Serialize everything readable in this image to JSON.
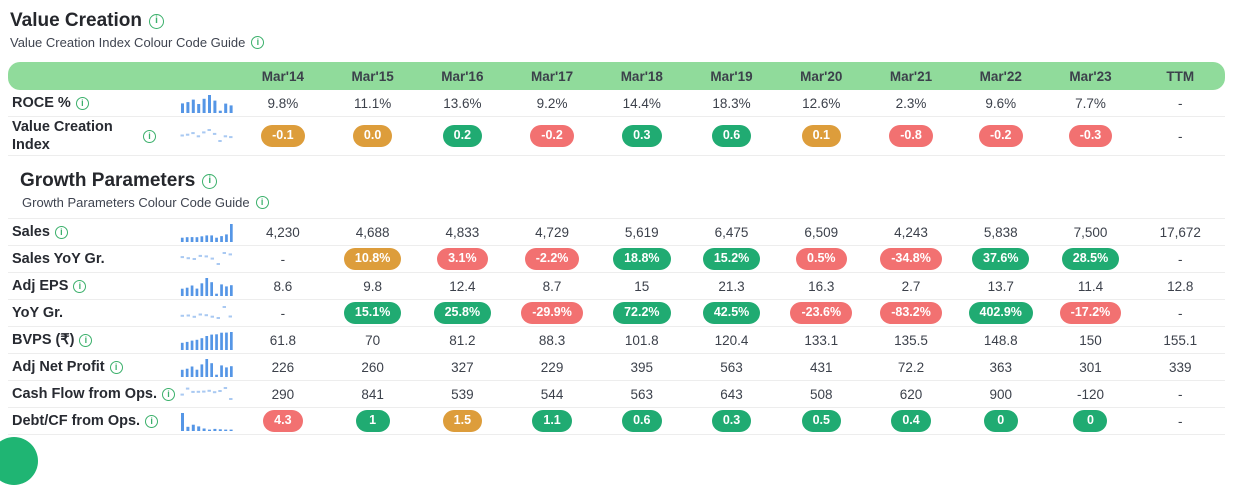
{
  "colors": {
    "g": "#20ab72",
    "r": "#f27171",
    "o": "#dd9d3b",
    "band": "#90db9b",
    "info": "#3bb06b",
    "spark": "#5596e6",
    "spark_light": "#a9c9f2",
    "fab": "#1fb573"
  },
  "columns": [
    "Mar'14",
    "Mar'15",
    "Mar'16",
    "Mar'17",
    "Mar'18",
    "Mar'19",
    "Mar'20",
    "Mar'21",
    "Mar'22",
    "Mar'23",
    "TTM"
  ],
  "value_creation": {
    "title": "Value Creation",
    "guide": "Value Creation Index Colour Code Guide",
    "rows": [
      {
        "label": "ROCE %",
        "info": true,
        "spark": "bars",
        "spark_values": [
          9.8,
          11.1,
          13.6,
          9.2,
          14.4,
          18.3,
          12.6,
          2.3,
          9.6,
          7.7
        ],
        "values": [
          "9.8%",
          "11.1%",
          "13.6%",
          "9.2%",
          "14.4%",
          "18.3%",
          "12.6%",
          "2.3%",
          "9.6%",
          "7.7%",
          "-"
        ]
      },
      {
        "label": "Value Creation Index",
        "info": true,
        "spark": "dots",
        "spark_values": [
          -0.1,
          0,
          0.2,
          -0.2,
          0.3,
          0.6,
          0.1,
          -0.8,
          -0.2,
          -0.3
        ],
        "values": [
          "-0.1",
          "0.0",
          "0.2",
          "-0.2",
          "0.3",
          "0.6",
          "0.1",
          "-0.8",
          "-0.2",
          "-0.3",
          "-"
        ],
        "pills": [
          "o",
          "o",
          "g",
          "r",
          "g",
          "g",
          "o",
          "r",
          "r",
          "r",
          null
        ]
      }
    ]
  },
  "growth": {
    "title": "Growth Parameters",
    "guide": "Growth Parameters Colour Code Guide",
    "rows": [
      {
        "label": "Sales",
        "info": true,
        "spark": "bars",
        "spark_values": [
          4230,
          4688,
          4833,
          4729,
          5619,
          6475,
          6509,
          4243,
          5838,
          7500,
          17672
        ],
        "values": [
          "4,230",
          "4,688",
          "4,833",
          "4,729",
          "5,619",
          "6,475",
          "6,509",
          "4,243",
          "5,838",
          "7,500",
          "17,672"
        ]
      },
      {
        "label": "Sales YoY Gr.",
        "info": false,
        "spark": "dots",
        "spark_values": [
          10.8,
          3.1,
          -2.2,
          18.8,
          15.2,
          0.5,
          -34.8,
          37.6,
          28.5
        ],
        "values": [
          "-",
          "10.8%",
          "3.1%",
          "-2.2%",
          "18.8%",
          "15.2%",
          "0.5%",
          "-34.8%",
          "37.6%",
          "28.5%",
          "-"
        ],
        "pills": [
          null,
          "o",
          "r",
          "r",
          "g",
          "g",
          "r",
          "r",
          "g",
          "g",
          null
        ]
      },
      {
        "label": "Adj EPS",
        "info": true,
        "spark": "bars",
        "spark_values": [
          8.6,
          9.8,
          12.4,
          8.7,
          15,
          21.3,
          16.3,
          2.7,
          13.7,
          11.4,
          12.8
        ],
        "values": [
          "8.6",
          "9.8",
          "12.4",
          "8.7",
          "15",
          "21.3",
          "16.3",
          "2.7",
          "13.7",
          "11.4",
          "12.8"
        ]
      },
      {
        "label": "YoY Gr.",
        "info": false,
        "spark": "dots",
        "spark_values": [
          15.1,
          25.8,
          -29.9,
          72.2,
          42.5,
          -23.6,
          -83.2,
          402.9,
          -17.2
        ],
        "values": [
          "-",
          "15.1%",
          "25.8%",
          "-29.9%",
          "72.2%",
          "42.5%",
          "-23.6%",
          "-83.2%",
          "402.9%",
          "-17.2%",
          "-"
        ],
        "pills": [
          null,
          "g",
          "g",
          "r",
          "g",
          "g",
          "r",
          "r",
          "g",
          "r",
          null
        ]
      },
      {
        "label": "BVPS (₹)",
        "info": true,
        "spark": "bars",
        "spark_values": [
          61.8,
          70,
          81.2,
          88.3,
          101.8,
          120.4,
          133.1,
          135.5,
          148.8,
          150,
          155.1
        ],
        "values": [
          "61.8",
          "70",
          "81.2",
          "88.3",
          "101.8",
          "120.4",
          "133.1",
          "135.5",
          "148.8",
          "150",
          "155.1"
        ]
      },
      {
        "label": "Adj Net Profit",
        "info": true,
        "spark": "bars",
        "spark_values": [
          226,
          260,
          327,
          229,
          395,
          563,
          431,
          72.2,
          363,
          301,
          339
        ],
        "values": [
          "226",
          "260",
          "327",
          "229",
          "395",
          "563",
          "431",
          "72.2",
          "363",
          "301",
          "339"
        ]
      },
      {
        "label": "Cash Flow from Ops.",
        "info": true,
        "spark": "dots",
        "spark_values": [
          290,
          841,
          539,
          544,
          563,
          643,
          508,
          620,
          900,
          -120
        ],
        "values": [
          "290",
          "841",
          "539",
          "544",
          "563",
          "643",
          "508",
          "620",
          "900",
          "-120",
          "-"
        ]
      },
      {
        "label": "Debt/CF from Ops.",
        "info": true,
        "spark": "bars",
        "spark_values": [
          4.3,
          1,
          1.5,
          1.1,
          0.6,
          0.3,
          0.5,
          0.4,
          0,
          0
        ],
        "values": [
          "4.3",
          "1",
          "1.5",
          "1.1",
          "0.6",
          "0.3",
          "0.5",
          "0.4",
          "0",
          "0",
          "-"
        ],
        "pills": [
          "r",
          "g",
          "o",
          "g",
          "g",
          "g",
          "g",
          "g",
          "g",
          "g",
          null
        ]
      }
    ]
  }
}
